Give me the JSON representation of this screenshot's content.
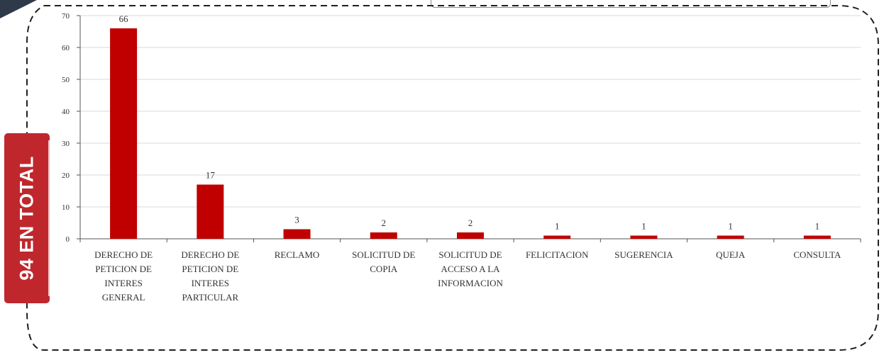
{
  "badge": {
    "text": "94 EN TOTAL"
  },
  "colors": {
    "bar": "#c00000",
    "badge": "#c0272d",
    "frame": "#1f1f1f",
    "corner": "#2e3a4a"
  },
  "chart_data": {
    "type": "bar",
    "categories": [
      [
        "DERECHO DE",
        "PETICION DE",
        "INTERES",
        "GENERAL"
      ],
      [
        "DERECHO DE",
        "PETICION DE",
        "INTERES",
        "PARTICULAR"
      ],
      [
        "RECLAMO"
      ],
      [
        "SOLICITUD DE",
        "COPIA"
      ],
      [
        "SOLICITUD DE",
        "ACCESO A LA",
        "INFORMACION"
      ],
      [
        "FELICITACION"
      ],
      [
        "SUGERENCIA"
      ],
      [
        "QUEJA"
      ],
      [
        "CONSULTA"
      ]
    ],
    "values": [
      66,
      17,
      3,
      2,
      2,
      1,
      1,
      1,
      1
    ],
    "data_labels": [
      "66",
      "17",
      "3",
      "2",
      "2",
      "1",
      "1",
      "1",
      "1"
    ],
    "yticks": [
      "0",
      "10",
      "20",
      "30",
      "40",
      "50",
      "60",
      "70"
    ],
    "ylim": [
      0,
      70
    ],
    "grid": true,
    "legend": "none"
  }
}
